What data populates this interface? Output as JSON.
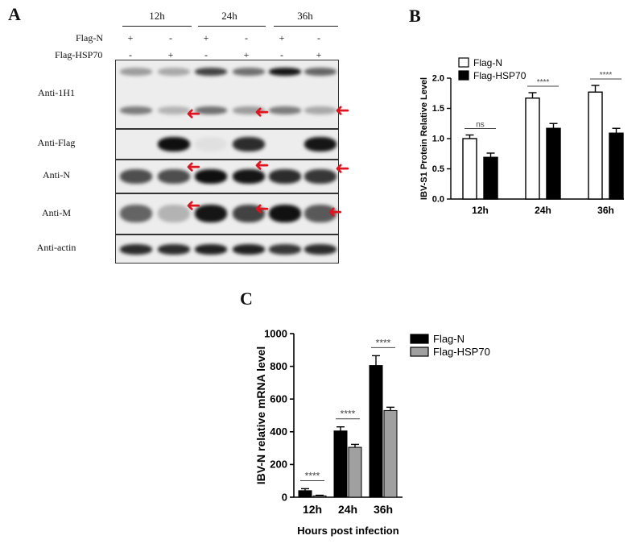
{
  "panels": {
    "a": "A",
    "b": "B",
    "c": "C"
  },
  "panel_a": {
    "time_headers": [
      "12h",
      "24h",
      "36h"
    ],
    "rows": [
      {
        "label": "Flag-N",
        "signs": [
          "+",
          "-",
          "+",
          "-",
          "+",
          "-"
        ]
      },
      {
        "label": "Flag-HSP70",
        "signs": [
          "-",
          "+",
          "-",
          "+",
          "-",
          "+"
        ]
      }
    ],
    "blots": [
      {
        "label": "Anti-1H1",
        "arrows": 3
      },
      {
        "label": "Anti-Flag",
        "arrows": 0
      },
      {
        "label": "Anti-N",
        "arrows": 3
      },
      {
        "label": "Anti-M",
        "arrows": 3
      },
      {
        "label": "Anti-actin",
        "arrows": 0
      }
    ],
    "arrow_glyph": "➜",
    "arrow_color": "#e0141e"
  },
  "chart_data": [
    {
      "type": "bar",
      "panel": "B",
      "categories": [
        "12h",
        "24h",
        "36h"
      ],
      "series": [
        {
          "name": "Flag-N",
          "values": [
            1.0,
            1.67,
            1.77
          ],
          "errors": [
            0.06,
            0.09,
            0.11
          ],
          "color": "#ffffff"
        },
        {
          "name": "Flag-HSP70",
          "values": [
            0.69,
            1.17,
            1.09
          ],
          "errors": [
            0.07,
            0.08,
            0.08
          ],
          "color": "#000000"
        }
      ],
      "ylabel": "IBV-S1 Protein Relative Level",
      "xlabel": "",
      "ylim": [
        0,
        2.0
      ],
      "yticks": [
        "0.0",
        "0.5",
        "1.0",
        "1.5",
        "2.0"
      ],
      "significance": [
        "ns",
        "****",
        "****"
      ],
      "legend_position": "top-left"
    },
    {
      "type": "bar",
      "panel": "C",
      "categories": [
        "12h",
        "24h",
        "36h"
      ],
      "series": [
        {
          "name": "Flag-N",
          "values": [
            40,
            405,
            805
          ],
          "errors": [
            12,
            25,
            60
          ],
          "color": "#000000"
        },
        {
          "name": "Flag-HSP70",
          "values": [
            8,
            305,
            530
          ],
          "errors": [
            4,
            18,
            20
          ],
          "color": "#a0a0a0"
        }
      ],
      "ylabel": "IBV-N relative  mRNA level",
      "xlabel": "Hours post infection",
      "ylim": [
        0,
        1000
      ],
      "yticks": [
        "0",
        "200",
        "400",
        "600",
        "800",
        "1000"
      ],
      "significance": [
        "****",
        "****",
        "****"
      ],
      "legend_position": "top-right"
    }
  ]
}
